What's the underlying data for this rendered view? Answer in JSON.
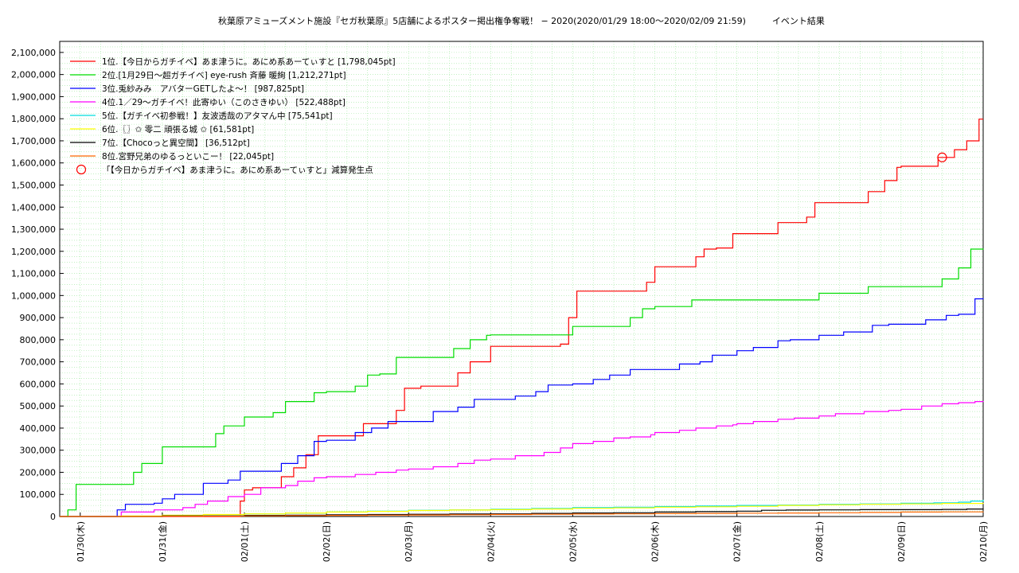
{
  "chart_data": {
    "type": "line",
    "title": "秋葉原アミューズメント施設『セガ秋葉原』5店舗によるポスター掲出権争奪戦！ − 2020(2020/01/29 18:00〜2020/02/09 21:59)　　　イベント結果",
    "xlabel": "",
    "ylabel": "",
    "x_unit": "days since 2020-01-30 00:00",
    "xlim": [
      -0.25,
      11.0
    ],
    "ylim": [
      0,
      2150000
    ],
    "y_ticks": [
      0,
      100000,
      200000,
      300000,
      400000,
      500000,
      600000,
      700000,
      800000,
      900000,
      1000000,
      1100000,
      1200000,
      1300000,
      1400000,
      1500000,
      1600000,
      1700000,
      1800000,
      1900000,
      2000000,
      2100000
    ],
    "y_tick_labels": [
      "0",
      "100,000",
      "200,000",
      "300,000",
      "400,000",
      "500,000",
      "600,000",
      "700,000",
      "800,000",
      "900,000",
      "1,000,000",
      "1,100,000",
      "1,200,000",
      "1,300,000",
      "1,400,000",
      "1,500,000",
      "1,600,000",
      "1,700,000",
      "1,800,000",
      "1,900,000",
      "2,000,000",
      "2,100,000"
    ],
    "x_ticks": [
      0,
      1,
      2,
      3,
      4,
      5,
      6,
      7,
      8,
      9,
      10,
      11
    ],
    "x_tick_labels": [
      "01/30(木)",
      "01/31(金)",
      "02/01(土)",
      "02/02(日)",
      "02/03(月)",
      "02/04(火)",
      "02/05(水)",
      "02/06(木)",
      "02/07(金)",
      "02/08(土)",
      "02/09(日)",
      "02/10(月)"
    ],
    "grid": true,
    "legend_position": "top-left",
    "series": [
      {
        "name": "1位.【今日からガチイベ】あま津うに。あにめ系あーてぃすと [1,798,045pt]",
        "color": "#ff0000",
        "x": [
          -0.25,
          1.05,
          1.88,
          1.95,
          2.0,
          2.1,
          2.45,
          2.6,
          2.75,
          2.9,
          3.1,
          3.45,
          3.55,
          3.85,
          3.95,
          4.15,
          4.45,
          4.6,
          4.75,
          5.0,
          5.3,
          5.85,
          5.95,
          6.05,
          6.7,
          6.9,
          7.0,
          7.2,
          7.5,
          7.6,
          7.75,
          7.95,
          8.0,
          8.15,
          8.5,
          8.85,
          8.95,
          9.4,
          9.6,
          9.8,
          9.95,
          10.0,
          10.45,
          10.55,
          10.65,
          10.8,
          10.95,
          11.0
        ],
        "y": [
          0,
          0,
          0,
          70000,
          120000,
          130000,
          180000,
          220000,
          280000,
          365000,
          365000,
          420000,
          420000,
          480000,
          580000,
          590000,
          590000,
          650000,
          700000,
          770000,
          770000,
          780000,
          900000,
          1020000,
          1020000,
          1060000,
          1130000,
          1130000,
          1175000,
          1210000,
          1215000,
          1280000,
          1280000,
          1280000,
          1330000,
          1355000,
          1420000,
          1420000,
          1470000,
          1520000,
          1580000,
          1585000,
          1625000,
          1625000,
          1660000,
          1700000,
          1798045,
          1798045
        ]
      },
      {
        "name": "2位.[1月29日〜超ガチイベ] eye-rush 斉藤 暖絢 [1,212,271pt]",
        "color": "#00dd00",
        "x": [
          -0.25,
          -0.15,
          -0.05,
          0.3,
          0.65,
          0.75,
          1.0,
          1.3,
          1.65,
          1.75,
          2.0,
          2.35,
          2.5,
          2.85,
          3.0,
          3.35,
          3.5,
          3.65,
          3.85,
          4.2,
          4.55,
          4.75,
          4.95,
          5.0,
          5.3,
          5.85,
          6.0,
          6.3,
          6.7,
          6.85,
          7.0,
          7.1,
          7.45,
          7.55,
          7.75,
          8.0,
          8.2,
          8.6,
          8.9,
          9.0,
          9.2,
          9.6,
          9.9,
          10.0,
          10.1,
          10.5,
          10.7,
          10.85,
          11.0
        ],
        "y": [
          0,
          30000,
          145000,
          145000,
          200000,
          240000,
          315000,
          315000,
          375000,
          410000,
          450000,
          470000,
          520000,
          560000,
          565000,
          590000,
          640000,
          645000,
          720000,
          720000,
          760000,
          800000,
          820000,
          822000,
          822000,
          822000,
          860000,
          860000,
          900000,
          940000,
          950000,
          950000,
          980000,
          980000,
          980000,
          980000,
          980000,
          980000,
          980000,
          1010000,
          1010000,
          1040000,
          1040000,
          1040000,
          1040000,
          1075000,
          1125000,
          1210000,
          1212271
        ]
      },
      {
        "name": "3位.兎紗みみ　アバターGETしたよ〜！ [987,825pt]",
        "color": "#0000ff",
        "x": [
          -0.25,
          0.0,
          0.45,
          0.55,
          0.65,
          0.9,
          1.0,
          1.15,
          1.4,
          1.5,
          1.55,
          1.8,
          1.95,
          2.2,
          2.45,
          2.65,
          2.85,
          3.0,
          3.15,
          3.35,
          3.55,
          3.75,
          4.0,
          4.3,
          4.6,
          4.8,
          5.0,
          5.3,
          5.55,
          5.7,
          5.9,
          6.0,
          6.25,
          6.45,
          6.7,
          6.95,
          7.0,
          7.3,
          7.55,
          7.7,
          7.95,
          8.0,
          8.2,
          8.5,
          8.65,
          8.95,
          9.0,
          9.3,
          9.65,
          9.85,
          10.0,
          10.3,
          10.55,
          10.7,
          10.9,
          11.0
        ],
        "y": [
          0,
          0,
          30000,
          55000,
          55000,
          60000,
          80000,
          100000,
          100000,
          150000,
          150000,
          165000,
          205000,
          205000,
          240000,
          275000,
          340000,
          345000,
          345000,
          380000,
          400000,
          430000,
          430000,
          475000,
          495000,
          530000,
          530000,
          545000,
          565000,
          595000,
          595000,
          600000,
          620000,
          640000,
          665000,
          665000,
          665000,
          690000,
          700000,
          730000,
          730000,
          750000,
          765000,
          795000,
          800000,
          800000,
          820000,
          835000,
          865000,
          870000,
          870000,
          890000,
          910000,
          915000,
          985000,
          987825
        ]
      },
      {
        "name": "4位.1／29〜ガチイベ！此寄ゆい（このさきゆい） [522,488pt]",
        "color": "#ff00ff",
        "x": [
          -0.25,
          0.3,
          0.5,
          0.9,
          1.25,
          1.4,
          1.55,
          1.8,
          2.0,
          2.2,
          2.5,
          2.65,
          2.85,
          3.0,
          3.35,
          3.6,
          3.85,
          4.0,
          4.3,
          4.6,
          4.8,
          5.0,
          5.3,
          5.65,
          5.85,
          6.0,
          6.25,
          6.5,
          6.7,
          6.95,
          7.0,
          7.3,
          7.5,
          7.75,
          7.95,
          8.0,
          8.2,
          8.5,
          8.7,
          9.0,
          9.2,
          9.55,
          9.85,
          10.0,
          10.25,
          10.5,
          10.7,
          10.9,
          11.0
        ],
        "y": [
          0,
          0,
          20000,
          30000,
          40000,
          55000,
          70000,
          90000,
          100000,
          130000,
          140000,
          160000,
          175000,
          180000,
          190000,
          200000,
          210000,
          215000,
          225000,
          240000,
          255000,
          260000,
          275000,
          290000,
          310000,
          330000,
          340000,
          355000,
          360000,
          370000,
          380000,
          390000,
          400000,
          410000,
          415000,
          420000,
          430000,
          440000,
          445000,
          455000,
          465000,
          475000,
          480000,
          485000,
          500000,
          510000,
          515000,
          520000,
          522488
        ]
      },
      {
        "name": "5位.【ガチイベ初参戦！】友波透哉のアタマん中 [75,541pt]",
        "color": "#00dddd",
        "x": [
          -0.25,
          0.5,
          1.0,
          1.5,
          2.0,
          2.5,
          3.0,
          3.5,
          4.0,
          4.5,
          5.0,
          5.5,
          6.0,
          6.5,
          7.0,
          7.5,
          8.0,
          8.5,
          9.0,
          9.5,
          10.0,
          10.4,
          10.7,
          10.85,
          11.0
        ],
        "y": [
          0,
          0,
          5000,
          8000,
          12000,
          15000,
          20000,
          24000,
          28000,
          30000,
          33000,
          36000,
          40000,
          42000,
          45000,
          47000,
          50000,
          52000,
          55000,
          57000,
          60000,
          62000,
          65000,
          70000,
          75541
        ]
      },
      {
        "name": "6位.〖〗✩ 零二 頑張る城 ✩ [61,581pt]",
        "color": "#ffff00",
        "x": [
          -0.25,
          0.5,
          1.0,
          1.5,
          2.0,
          2.5,
          3.0,
          3.5,
          4.0,
          4.5,
          5.0,
          5.5,
          6.0,
          6.5,
          7.0,
          7.5,
          8.0,
          8.5,
          9.0,
          9.5,
          10.0,
          10.5,
          11.0
        ],
        "y": [
          0,
          2000,
          6000,
          9000,
          12000,
          16000,
          20000,
          23000,
          27000,
          29000,
          31000,
          34000,
          37000,
          39000,
          42000,
          44000,
          46000,
          50000,
          53000,
          55000,
          57000,
          59000,
          61581
        ]
      },
      {
        "name": "7位.【Chocoっと異空間】 [36,512pt]",
        "color": "#000000",
        "x": [
          -0.25,
          0.5,
          1.0,
          1.5,
          2.0,
          2.5,
          3.0,
          3.5,
          4.0,
          4.5,
          5.0,
          5.5,
          6.0,
          6.5,
          7.0,
          7.5,
          8.0,
          8.3,
          8.6,
          9.0,
          9.5,
          10.0,
          10.5,
          10.8,
          11.0
        ],
        "y": [
          0,
          0,
          3000,
          3000,
          5000,
          6000,
          8000,
          9000,
          10000,
          11000,
          12000,
          14000,
          16000,
          17000,
          20000,
          22000,
          24000,
          28000,
          29000,
          30000,
          31000,
          31000,
          32000,
          34000,
          36512
        ]
      },
      {
        "name": "8位.宮野兄弟のゆるっといこー！ [22,045pt]",
        "color": "#ff6600",
        "x": [
          -0.25,
          0.5,
          1.0,
          1.5,
          2.0,
          2.5,
          3.0,
          3.5,
          4.0,
          4.5,
          5.0,
          5.5,
          6.0,
          6.5,
          7.0,
          7.5,
          8.0,
          8.5,
          9.0,
          9.5,
          10.0,
          10.5,
          11.0
        ],
        "y": [
          0,
          0,
          1000,
          2000,
          3000,
          4000,
          5000,
          6000,
          7000,
          8000,
          9000,
          10000,
          11000,
          12000,
          13000,
          14000,
          15000,
          16000,
          17000,
          18500,
          20000,
          21000,
          22045
        ]
      }
    ],
    "marker": {
      "name": "「【今日からガチイベ】あま津うに。あにめ系あーてぃすと」減算発生点",
      "color": "#ff0000",
      "x": 10.5,
      "y": 1625000
    }
  }
}
